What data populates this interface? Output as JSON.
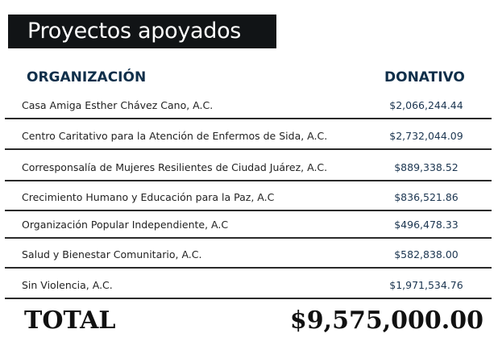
{
  "title": "Proyectos apoyados",
  "columns": {
    "organization": "ORGANIZACIÓN",
    "donation": "DONATIVO"
  },
  "rows": [
    {
      "organization": "Casa Amiga Esther Chávez Cano, A.C.",
      "donation": "$2,066,244.44"
    },
    {
      "organization": "Centro Caritativo para la Atención de Enfermos de Sida, A.C.",
      "donation": "$2,732,044.09"
    },
    {
      "organization": "Corresponsalía de Mujeres Resilientes de Ciudad Juárez, A.C.",
      "donation": "$889,338.52"
    },
    {
      "organization": "Crecimiento Humano y Educación para la Paz, A.C",
      "donation": "$836,521.86"
    },
    {
      "organization": "Organización Popular Independiente, A.C",
      "donation": "$496,478.33"
    },
    {
      "organization": "Salud y Bienestar Comunitario, A.C.",
      "donation": "$582,838.00"
    },
    {
      "organization": "Sin Violencia, A.C.",
      "donation": "$1,971,534.76"
    }
  ],
  "total": {
    "label": "TOTAL",
    "value": "$9,575,000.00"
  }
}
